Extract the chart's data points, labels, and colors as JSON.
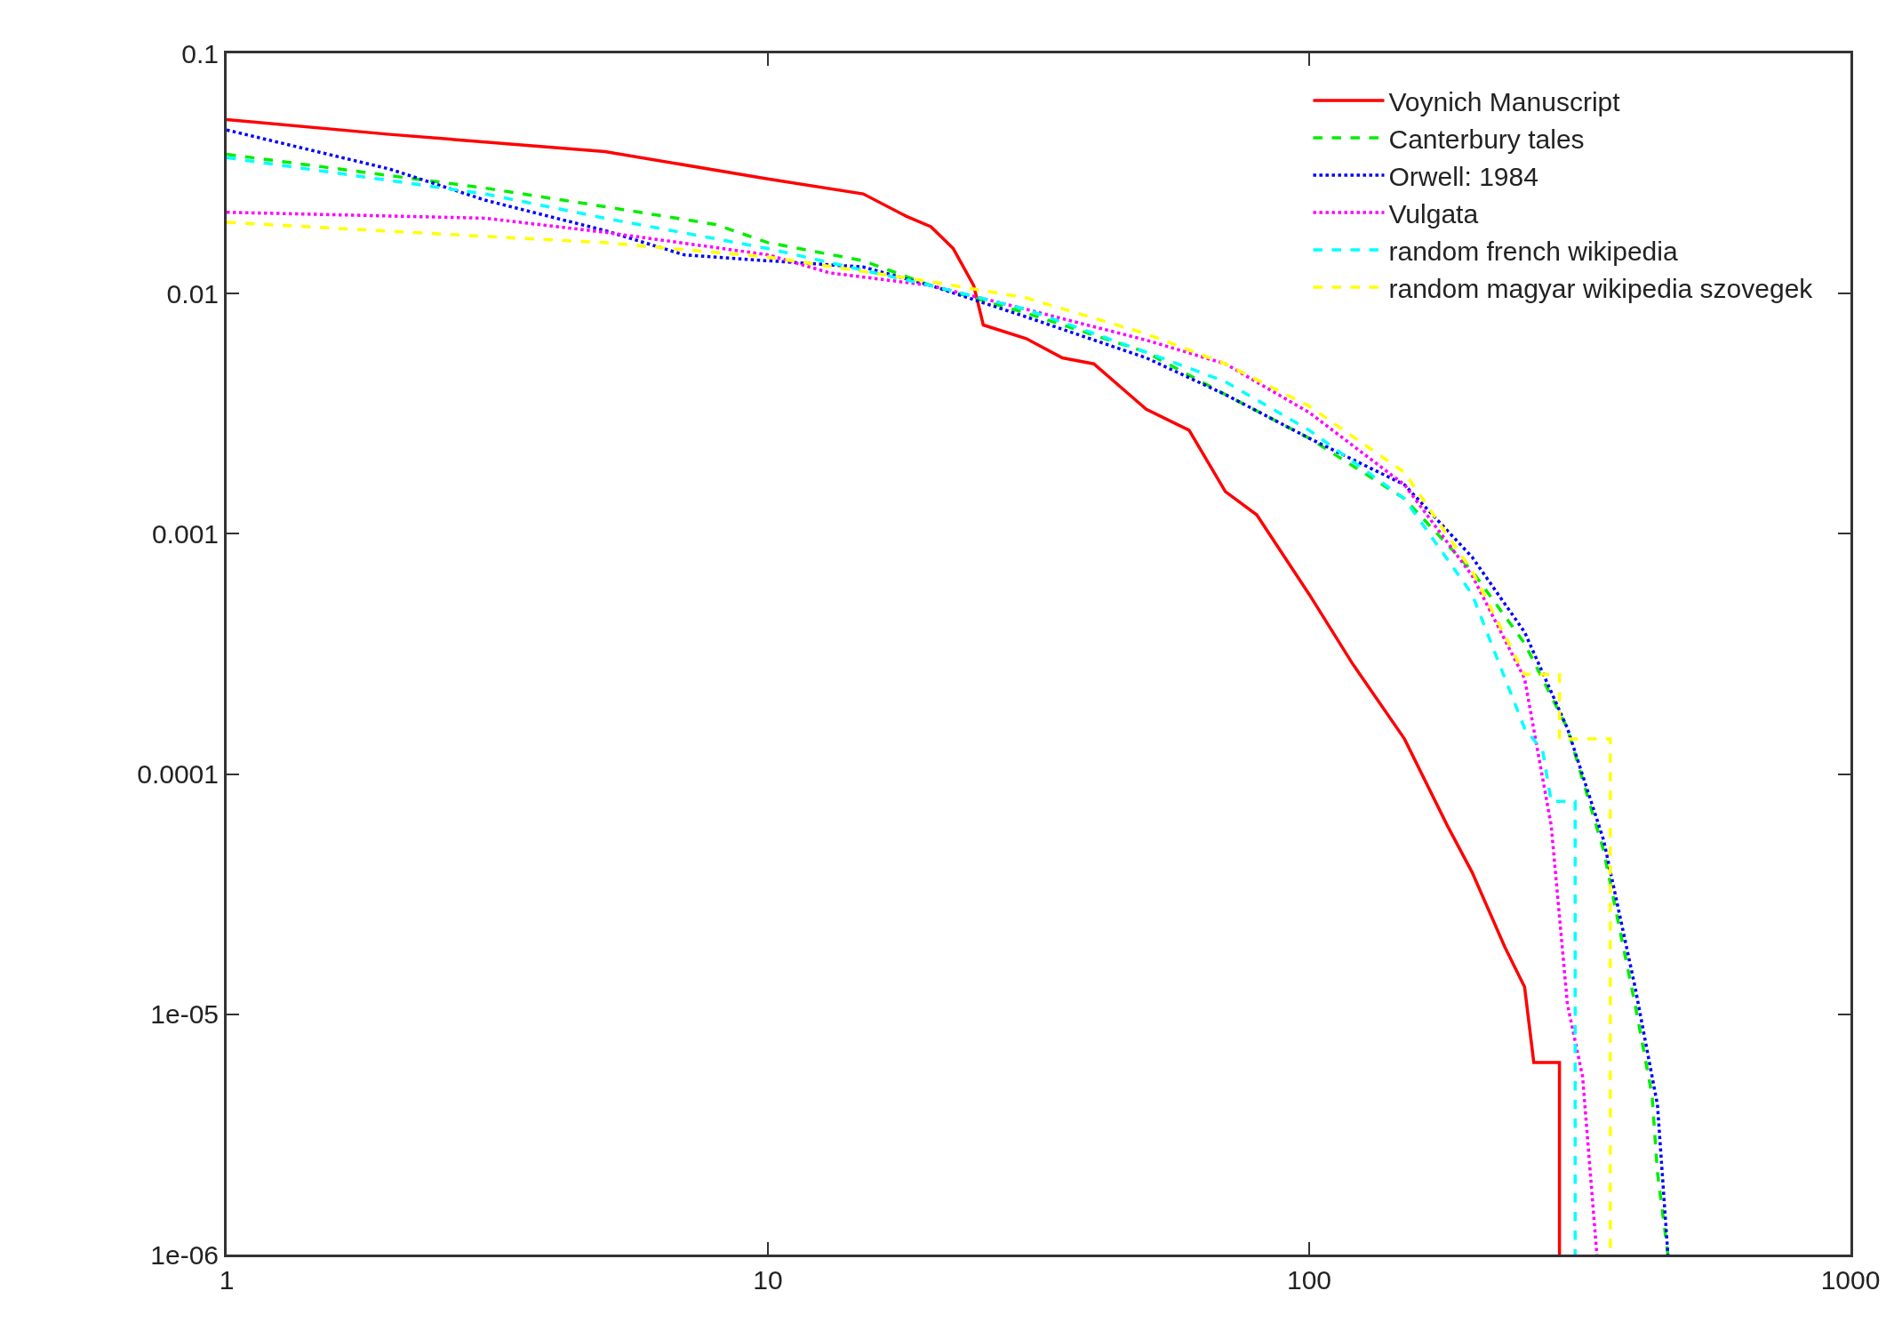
{
  "chart_data": {
    "type": "line",
    "log": "xy",
    "grid": false,
    "legend": "top right",
    "marker": "none",
    "xlim": [
      1,
      1000
    ],
    "xticks": [
      1,
      10,
      100,
      1000
    ],
    "ylim": [
      1e-06,
      0.1
    ],
    "yticks": [
      {
        "value": 1e-06,
        "label": "1e-06"
      },
      {
        "value": 1e-05,
        "label": "1e-05"
      },
      0.0001,
      0.001,
      0.01,
      0.1
    ],
    "series": [
      {
        "name": "Voynich Manuscript",
        "color": "#ff0000",
        "line_style": "solid",
        "x": [
          1,
          2,
          5,
          10,
          15,
          18,
          20,
          22,
          24,
          25,
          30,
          35,
          40,
          50,
          60,
          70,
          80,
          100,
          120,
          150,
          180,
          200,
          230,
          250,
          260,
          290,
          290
        ],
        "values": [
          0.053,
          0.046,
          0.039,
          0.03,
          0.026,
          0.021,
          0.019,
          0.0154,
          0.0108,
          0.0074,
          0.0065,
          0.0054,
          0.0051,
          0.0033,
          0.0027,
          0.0015,
          0.0012,
          0.00056,
          0.00029,
          0.00014,
          6.1e-05,
          3.9e-05,
          1.9e-05,
          1.3e-05,
          6.3e-06,
          6.3e-06,
          1e-06
        ]
      },
      {
        "name": "Canterbury tales",
        "color": "#00ee00",
        "line_style": "dashed",
        "x": [
          1,
          3,
          5,
          8,
          10,
          15,
          20,
          30,
          50,
          70,
          100,
          150,
          200,
          250,
          300,
          350,
          400,
          430,
          440,
          460
        ],
        "values": [
          0.038,
          0.0275,
          0.023,
          0.0194,
          0.0163,
          0.0137,
          0.0108,
          0.0083,
          0.0057,
          0.0038,
          0.0025,
          0.0014,
          0.0007,
          0.00035,
          0.000155,
          4.8e-05,
          1.1e-05,
          4.6e-06,
          2.2e-06,
          1e-06
        ]
      },
      {
        "name": "Orwell: 1984",
        "color": "#0000ff",
        "line_style": "dotted",
        "x": [
          1,
          2,
          3,
          5,
          7,
          10,
          15,
          20,
          30,
          50,
          70,
          100,
          150,
          200,
          250,
          300,
          350,
          400,
          440,
          460
        ],
        "values": [
          0.048,
          0.033,
          0.0245,
          0.0183,
          0.0145,
          0.0137,
          0.0129,
          0.0108,
          0.008,
          0.0054,
          0.0038,
          0.0025,
          0.0016,
          0.0008,
          0.00039,
          0.000155,
          5.3e-05,
          1.3e-05,
          4.2e-06,
          1e-06
        ]
      },
      {
        "name": "Vulgata",
        "color": "#ff00ff",
        "line_style": "dotted",
        "x": [
          1,
          3,
          5,
          10,
          13,
          20,
          30,
          50,
          70,
          100,
          150,
          200,
          250,
          280,
          300,
          320,
          340
        ],
        "values": [
          0.0218,
          0.0206,
          0.018,
          0.0145,
          0.0122,
          0.0108,
          0.0086,
          0.0064,
          0.0051,
          0.0032,
          0.0016,
          0.00067,
          0.00025,
          6.1e-05,
          1.1e-05,
          5.5e-06,
          1e-06
        ]
      },
      {
        "name": "random french wikipedia",
        "color": "#00ffff",
        "line_style": "dashed",
        "x": [
          1,
          3,
          5,
          10,
          20,
          30,
          50,
          70,
          100,
          150,
          200,
          230,
          250,
          270,
          280,
          310,
          310
        ],
        "values": [
          0.0368,
          0.026,
          0.0206,
          0.0154,
          0.0108,
          0.0086,
          0.0057,
          0.0043,
          0.0027,
          0.0014,
          0.00056,
          0.00025,
          0.000155,
          0.000125,
          7.7e-05,
          7.7e-05,
          1e-06
        ]
      },
      {
        "name": "random magyar wikipedia szovegek",
        "color": "#ffff00",
        "line_style": "dashed",
        "x": [
          1,
          3,
          5,
          10,
          20,
          30,
          50,
          70,
          100,
          150,
          200,
          250,
          290,
          290,
          360,
          360
        ],
        "values": [
          0.0198,
          0.0173,
          0.0163,
          0.0142,
          0.0112,
          0.0096,
          0.0068,
          0.0051,
          0.0034,
          0.0018,
          0.0007,
          0.00026,
          0.00026,
          0.00014,
          0.00014,
          1e-06
        ]
      }
    ]
  }
}
